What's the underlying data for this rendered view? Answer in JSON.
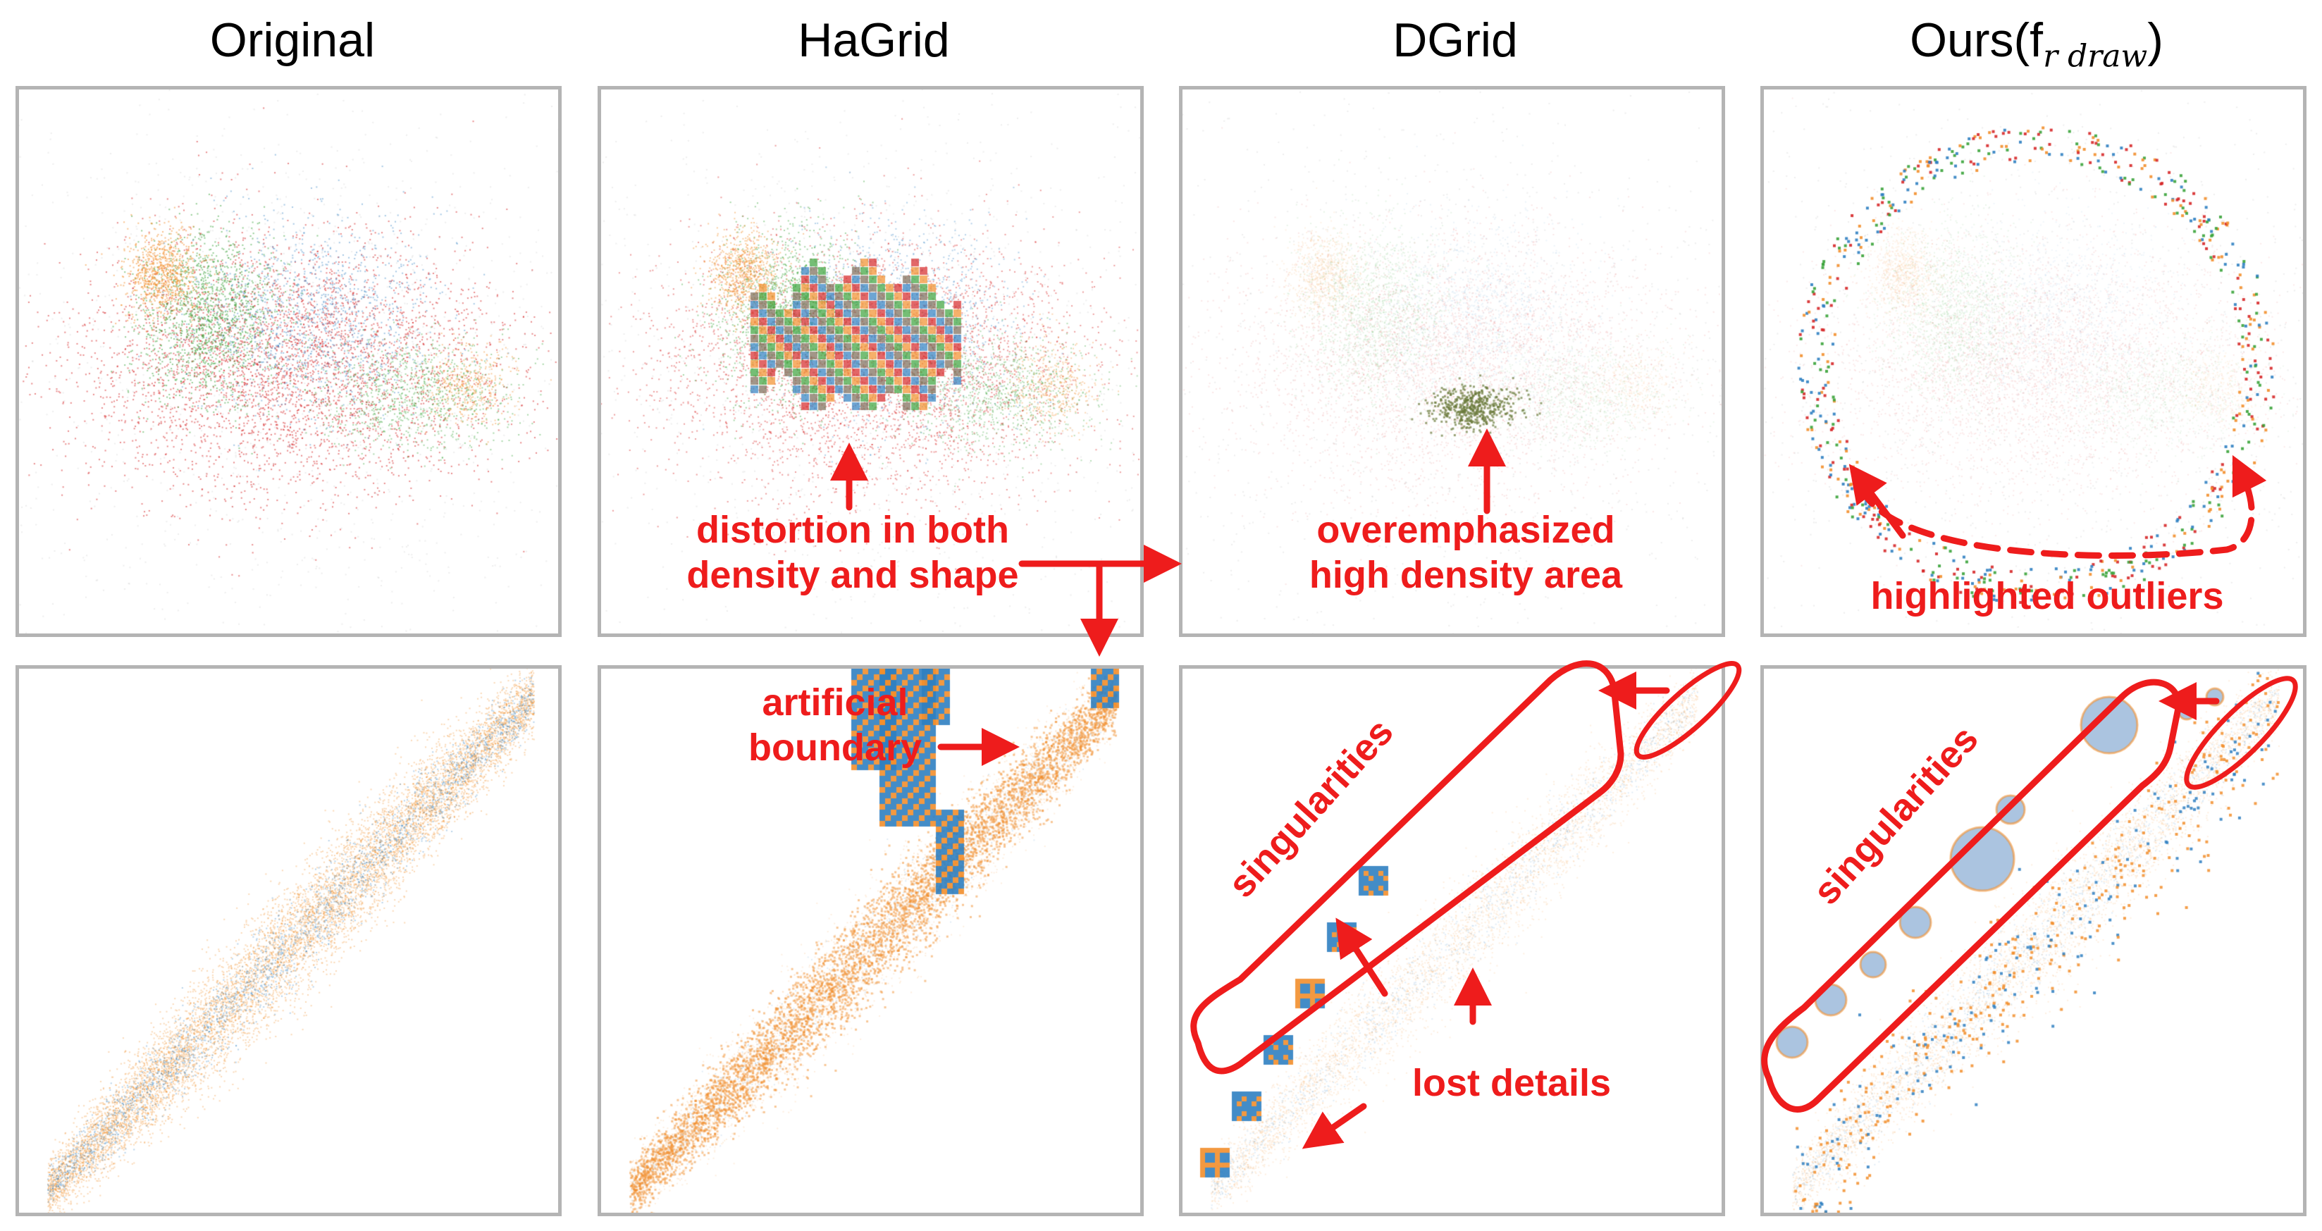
{
  "figure": {
    "columns": [
      {
        "title": "Original",
        "subscript": ""
      },
      {
        "title": "HaGrid",
        "subscript": ""
      },
      {
        "title": "DGrid",
        "subscript": ""
      },
      {
        "title": "Ours(f",
        "subscript": "r draw",
        "suffix": ")"
      }
    ],
    "annotations": {
      "distortion_line1": "distortion in both",
      "distortion_line2": "density and shape",
      "overemphasized_line1": "overemphasized",
      "overemphasized_line2": "high density area",
      "highlighted_outliers": "highlighted outliers",
      "artificial_line1": "artificial",
      "artificial_line2": "boundary",
      "singularities_dgrid": "singularities",
      "lost_details": "lost details",
      "singularities_ours": "singularities"
    },
    "colors": {
      "annotation_red": "#ee1c1c",
      "orange": "#f28e2b",
      "green": "#3aa33a",
      "blue": "#2f7fc1",
      "red": "#d62728",
      "panel_border": "#b4b4b4"
    }
  }
}
